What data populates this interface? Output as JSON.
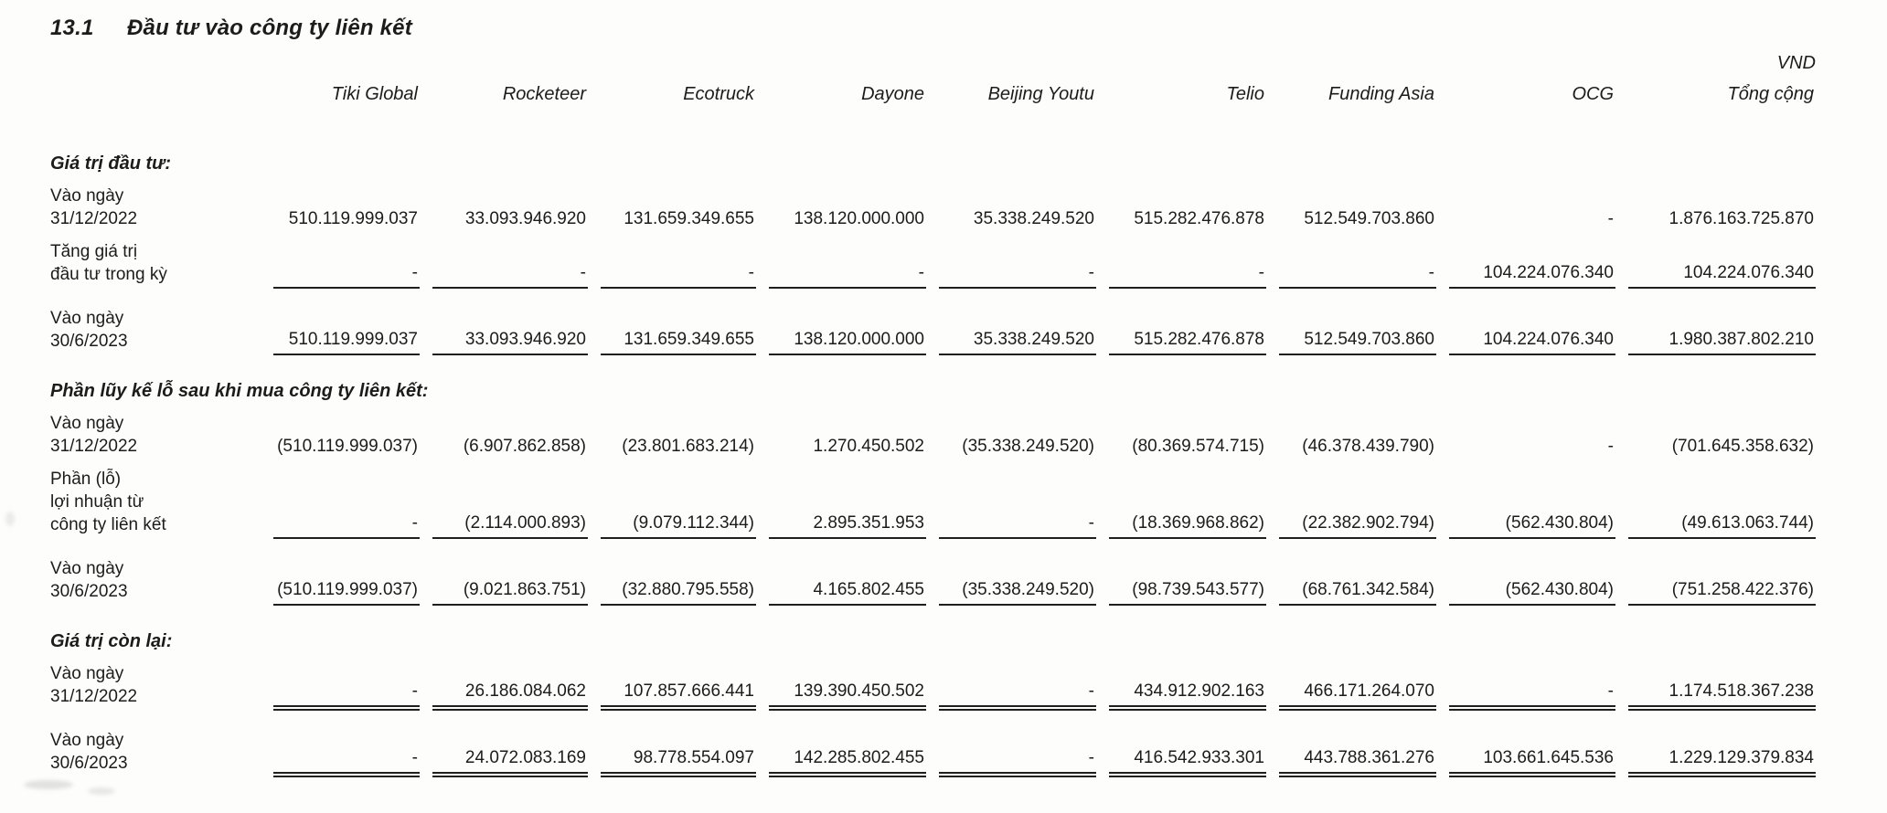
{
  "doc": {
    "section_number": "13.1",
    "title": "Đầu tư vào công ty liên kết",
    "currency_label": "VND"
  },
  "table": {
    "columns": [
      "Tiki Global",
      "Rocketeer",
      "Ecotruck",
      "Dayone",
      "Beijing Youtu",
      "Telio",
      "Funding Asia",
      "OCG",
      "Tổng cộng"
    ],
    "sections": [
      {
        "header": "Giá trị đầu tư:",
        "rows": [
          {
            "label": "Vào ngày\n31/12/2022",
            "values": [
              "510.119.999.037",
              "33.093.946.920",
              "131.659.349.655",
              "138.120.000.000",
              "35.338.249.520",
              "515.282.476.878",
              "512.549.703.860",
              "-",
              "1.876.163.725.870"
            ],
            "underline": "none"
          },
          {
            "label": "Tăng giá trị\nđầu tư trong kỳ",
            "values": [
              "-",
              "-",
              "-",
              "-",
              "-",
              "-",
              "-",
              "104.224.076.340",
              "104.224.076.340"
            ],
            "underline": "single"
          },
          {
            "label": "Vào ngày\n30/6/2023",
            "values": [
              "510.119.999.037",
              "33.093.946.920",
              "131.659.349.655",
              "138.120.000.000",
              "35.338.249.520",
              "515.282.476.878",
              "512.549.703.860",
              "104.224.076.340",
              "1.980.387.802.210"
            ],
            "underline": "single"
          }
        ]
      },
      {
        "header": "Phần lũy kế lỗ sau khi mua công ty liên kết:",
        "rows": [
          {
            "label": "Vào ngày\n31/12/2022",
            "values": [
              "(510.119.999.037)",
              "(6.907.862.858)",
              "(23.801.683.214)",
              "1.270.450.502",
              "(35.338.249.520)",
              "(80.369.574.715)",
              "(46.378.439.790)",
              "-",
              "(701.645.358.632)"
            ],
            "underline": "none"
          },
          {
            "label": "Phần (lỗ)\nlợi nhuận từ\ncông ty liên kết",
            "values": [
              "-",
              "(2.114.000.893)",
              "(9.079.112.344)",
              "2.895.351.953",
              "-",
              "(18.369.968.862)",
              "(22.382.902.794)",
              "(562.430.804)",
              "(49.613.063.744)"
            ],
            "underline": "single"
          },
          {
            "label": "Vào ngày\n30/6/2023",
            "values": [
              "(510.119.999.037)",
              "(9.021.863.751)",
              "(32.880.795.558)",
              "4.165.802.455",
              "(35.338.249.520)",
              "(98.739.543.577)",
              "(68.761.342.584)",
              "(562.430.804)",
              "(751.258.422.376)"
            ],
            "underline": "single"
          }
        ]
      },
      {
        "header": "Giá trị còn lại:",
        "rows": [
          {
            "label": "Vào ngày\n31/12/2022",
            "values": [
              "-",
              "26.186.084.062",
              "107.857.666.441",
              "139.390.450.502",
              "-",
              "434.912.902.163",
              "466.171.264.070",
              "-",
              "1.174.518.367.238"
            ],
            "underline": "double"
          },
          {
            "label": "Vào ngày\n30/6/2023",
            "values": [
              "-",
              "24.072.083.169",
              "98.778.554.097",
              "142.285.802.455",
              "-",
              "416.542.933.301",
              "443.788.361.276",
              "103.661.645.536",
              "1.229.129.379.834"
            ],
            "underline": "double"
          }
        ]
      }
    ]
  }
}
